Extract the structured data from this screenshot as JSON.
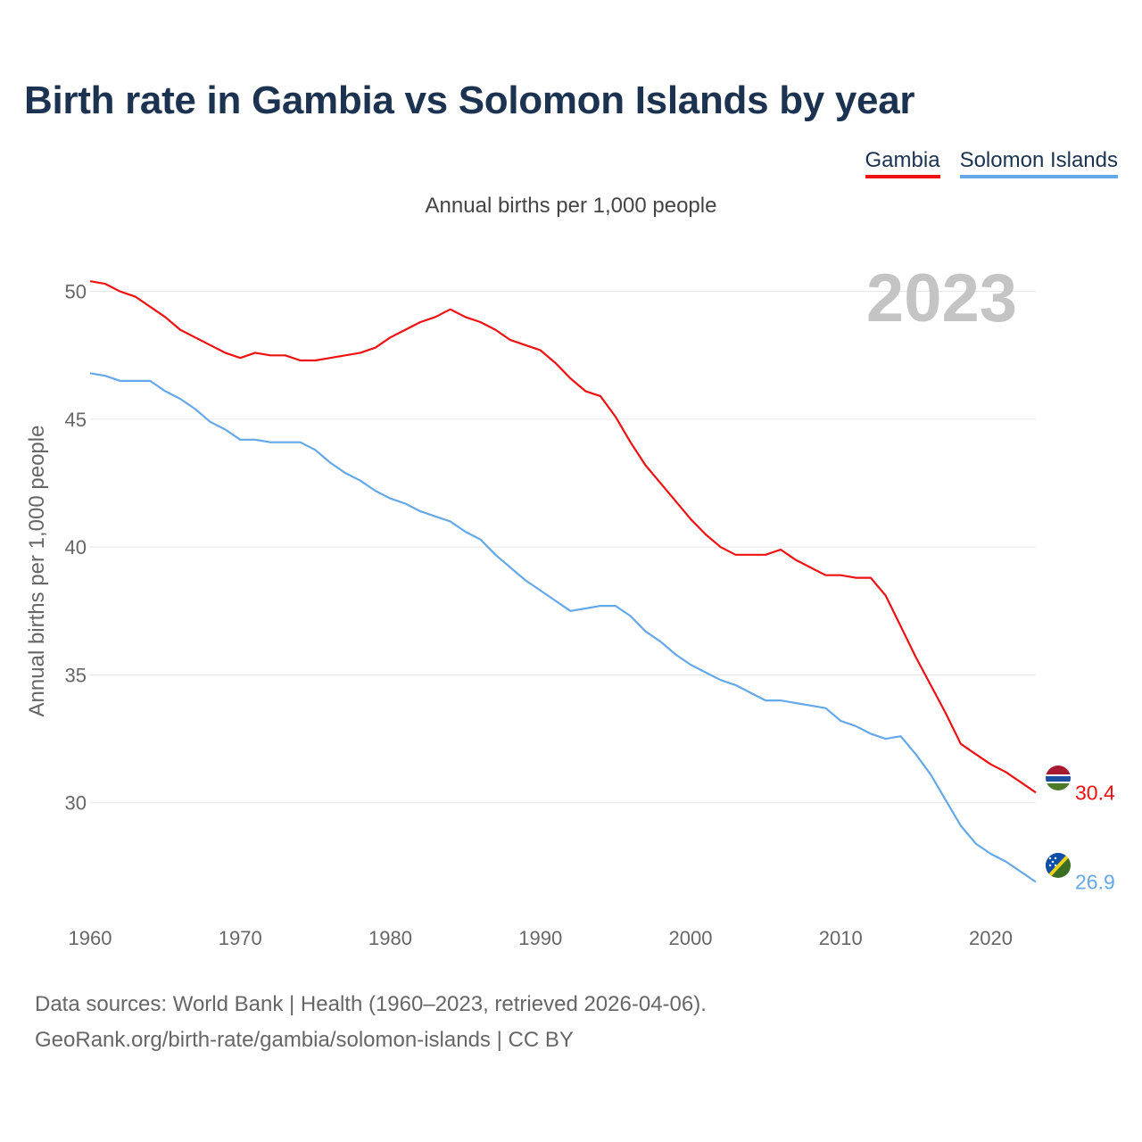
{
  "title": "Birth rate in Gambia vs Solomon Islands by year",
  "legend": {
    "gambia": "Gambia",
    "solomon": "Solomon Islands"
  },
  "subtitle": "Annual births per 1,000 people",
  "source_line1": "Data sources: World Bank | Health (1960–2023, retrieved 2026-04-06).",
  "source_line2": "GeoRank.org/birth-rate/gambia/solomon-islands | CC BY",
  "colors": {
    "gambia": "#ee1111",
    "solomon": "#64a8e8",
    "grid": "#e6e6e6",
    "tick": "#666666",
    "year_watermark": "#c4c4c4"
  },
  "chart_data": {
    "type": "line",
    "title": "Birth rate in Gambia vs Solomon Islands by year",
    "xlabel": "",
    "ylabel": "Annual births per 1,000 people",
    "xlim": [
      1960,
      2023
    ],
    "ylim": [
      26.5,
      51
    ],
    "xticks": [
      1960,
      1970,
      1980,
      1990,
      2000,
      2010,
      2020
    ],
    "yticks": [
      30,
      35,
      40,
      45,
      50
    ],
    "year_label": "2023",
    "x": [
      1960,
      1961,
      1962,
      1963,
      1964,
      1965,
      1966,
      1967,
      1968,
      1969,
      1970,
      1971,
      1972,
      1973,
      1974,
      1975,
      1976,
      1977,
      1978,
      1979,
      1980,
      1981,
      1982,
      1983,
      1984,
      1985,
      1986,
      1987,
      1988,
      1989,
      1990,
      1991,
      1992,
      1993,
      1994,
      1995,
      1996,
      1997,
      1998,
      1999,
      2000,
      2001,
      2002,
      2003,
      2004,
      2005,
      2006,
      2007,
      2008,
      2009,
      2010,
      2011,
      2012,
      2013,
      2014,
      2015,
      2016,
      2017,
      2018,
      2019,
      2020,
      2021,
      2022,
      2023
    ],
    "series": [
      {
        "name": "Gambia",
        "end_label": "30.4",
        "values": [
          50.4,
          50.3,
          50.0,
          49.8,
          49.4,
          49.0,
          48.5,
          48.2,
          47.9,
          47.6,
          47.4,
          47.6,
          47.5,
          47.5,
          47.3,
          47.3,
          47.4,
          47.5,
          47.6,
          47.8,
          48.2,
          48.5,
          48.8,
          49.0,
          49.3,
          49.0,
          48.8,
          48.5,
          48.1,
          47.9,
          47.7,
          47.2,
          46.6,
          46.1,
          45.9,
          45.1,
          44.1,
          43.2,
          42.5,
          41.8,
          41.1,
          40.5,
          40.0,
          39.7,
          39.7,
          39.7,
          39.9,
          39.5,
          39.2,
          38.9,
          38.9,
          38.8,
          38.8,
          38.1,
          36.9,
          35.7,
          34.6,
          33.5,
          32.3,
          31.9,
          31.5,
          31.2,
          30.8,
          30.4
        ]
      },
      {
        "name": "Solomon Islands",
        "end_label": "26.9",
        "values": [
          46.8,
          46.7,
          46.5,
          46.5,
          46.5,
          46.1,
          45.8,
          45.4,
          44.9,
          44.6,
          44.2,
          44.2,
          44.1,
          44.1,
          44.1,
          43.8,
          43.3,
          42.9,
          42.6,
          42.2,
          41.9,
          41.7,
          41.4,
          41.2,
          41.0,
          40.6,
          40.3,
          39.7,
          39.2,
          38.7,
          38.3,
          37.9,
          37.5,
          37.6,
          37.7,
          37.7,
          37.3,
          36.7,
          36.3,
          35.8,
          35.4,
          35.1,
          34.8,
          34.6,
          34.3,
          34.0,
          34.0,
          33.9,
          33.8,
          33.7,
          33.2,
          33.0,
          32.7,
          32.5,
          32.6,
          31.9,
          31.1,
          30.1,
          29.1,
          28.4,
          28.0,
          27.7,
          27.3,
          26.9
        ]
      }
    ]
  }
}
